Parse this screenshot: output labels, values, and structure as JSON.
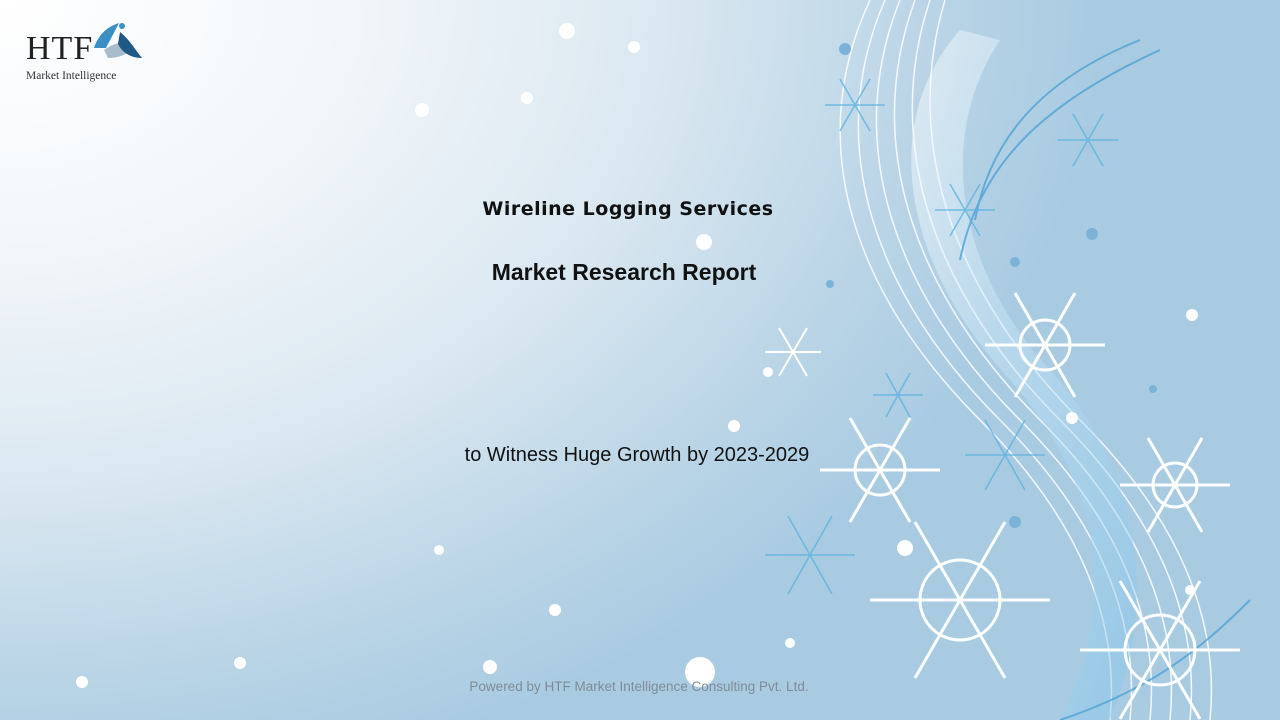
{
  "logo": {
    "brand": "HTF",
    "tagline": "Market Intelligence"
  },
  "title": "Wireline Logging Services",
  "subtitle": "Market Research Report",
  "tagline": "to Witness Huge Growth by 2023-2029",
  "footer": "Powered by HTF Market Intelligence Consulting Pvt. Ltd.",
  "colors": {
    "background_light": "#ffffff",
    "background_blue": "#a9cbe2",
    "accent": "#3a8fc4"
  }
}
